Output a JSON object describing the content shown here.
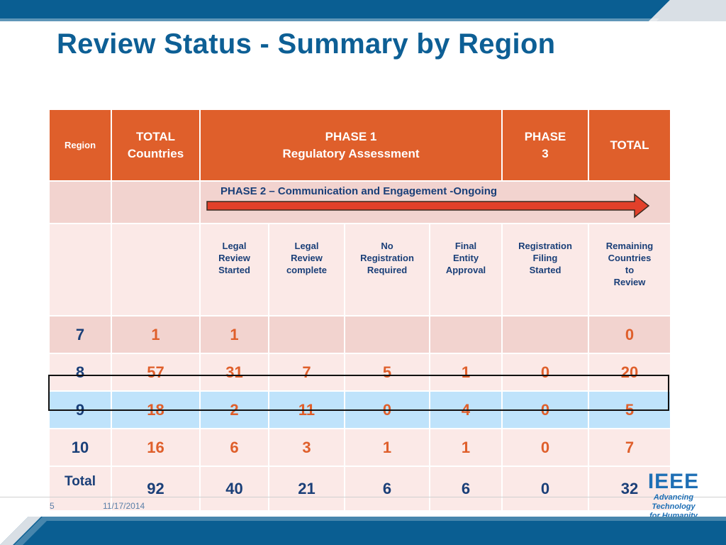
{
  "title": "Review Status - Summary by Region",
  "colors": {
    "header_orange": "#df5f2b",
    "navy_text": "#1a3f78",
    "title_blue": "#0d5f95",
    "highlight_blue": "#bfe3fb"
  },
  "table": {
    "header": {
      "region": "Region",
      "total_countries_line1": "TOTAL",
      "total_countries_line2": "Countries",
      "phase1_line1": "PHASE 1",
      "phase1_line2": "Regulatory Assessment",
      "phase3_line1": "PHASE",
      "phase3_line2": "3",
      "total": "TOTAL"
    },
    "phase2_label": "PHASE 2 – Communication and Engagement -Ongoing",
    "subheaders": [
      [
        "Legal",
        "Review",
        "Started"
      ],
      [
        "Legal",
        "Review",
        "complete"
      ],
      [
        "No",
        "Registration",
        "Required"
      ],
      [
        "Final",
        "Entity",
        "Approval"
      ],
      [
        "Registration",
        "Filing",
        "Started"
      ],
      [
        "Remaining",
        "Countries",
        "to",
        "Review"
      ]
    ],
    "rows": [
      {
        "region": "7",
        "total_countries": "1",
        "legal_review_started": "1",
        "legal_review_complete": "",
        "no_registration_required": "",
        "final_entity_approval": "",
        "registration_filing_started": "",
        "remaining_countries": "0"
      },
      {
        "region": "8",
        "total_countries": "57",
        "legal_review_started": "31",
        "legal_review_complete": "7",
        "no_registration_required": "5",
        "final_entity_approval": "1",
        "registration_filing_started": "0",
        "remaining_countries": "20"
      },
      {
        "region": "9",
        "total_countries": "18",
        "legal_review_started": "2",
        "legal_review_complete": "11",
        "no_registration_required": "0",
        "final_entity_approval": "4",
        "registration_filing_started": "0",
        "remaining_countries": "5"
      },
      {
        "region": "10",
        "total_countries": "16",
        "legal_review_started": "6",
        "legal_review_complete": "3",
        "no_registration_required": "1",
        "final_entity_approval": "1",
        "registration_filing_started": "0",
        "remaining_countries": "7"
      }
    ],
    "total_row": {
      "label": "Total",
      "total_countries": "92",
      "legal_review_started": "40",
      "legal_review_complete": "21",
      "no_registration_required": "6",
      "final_entity_approval": "6",
      "registration_filing_started": "0",
      "remaining_countries": "32"
    }
  },
  "footer": {
    "page_number": "5",
    "date": "11/17/2014",
    "logo_text": "IEEE",
    "logo_tagline_line1": "Advancing Technology",
    "logo_tagline_line2": "for Humanity"
  }
}
